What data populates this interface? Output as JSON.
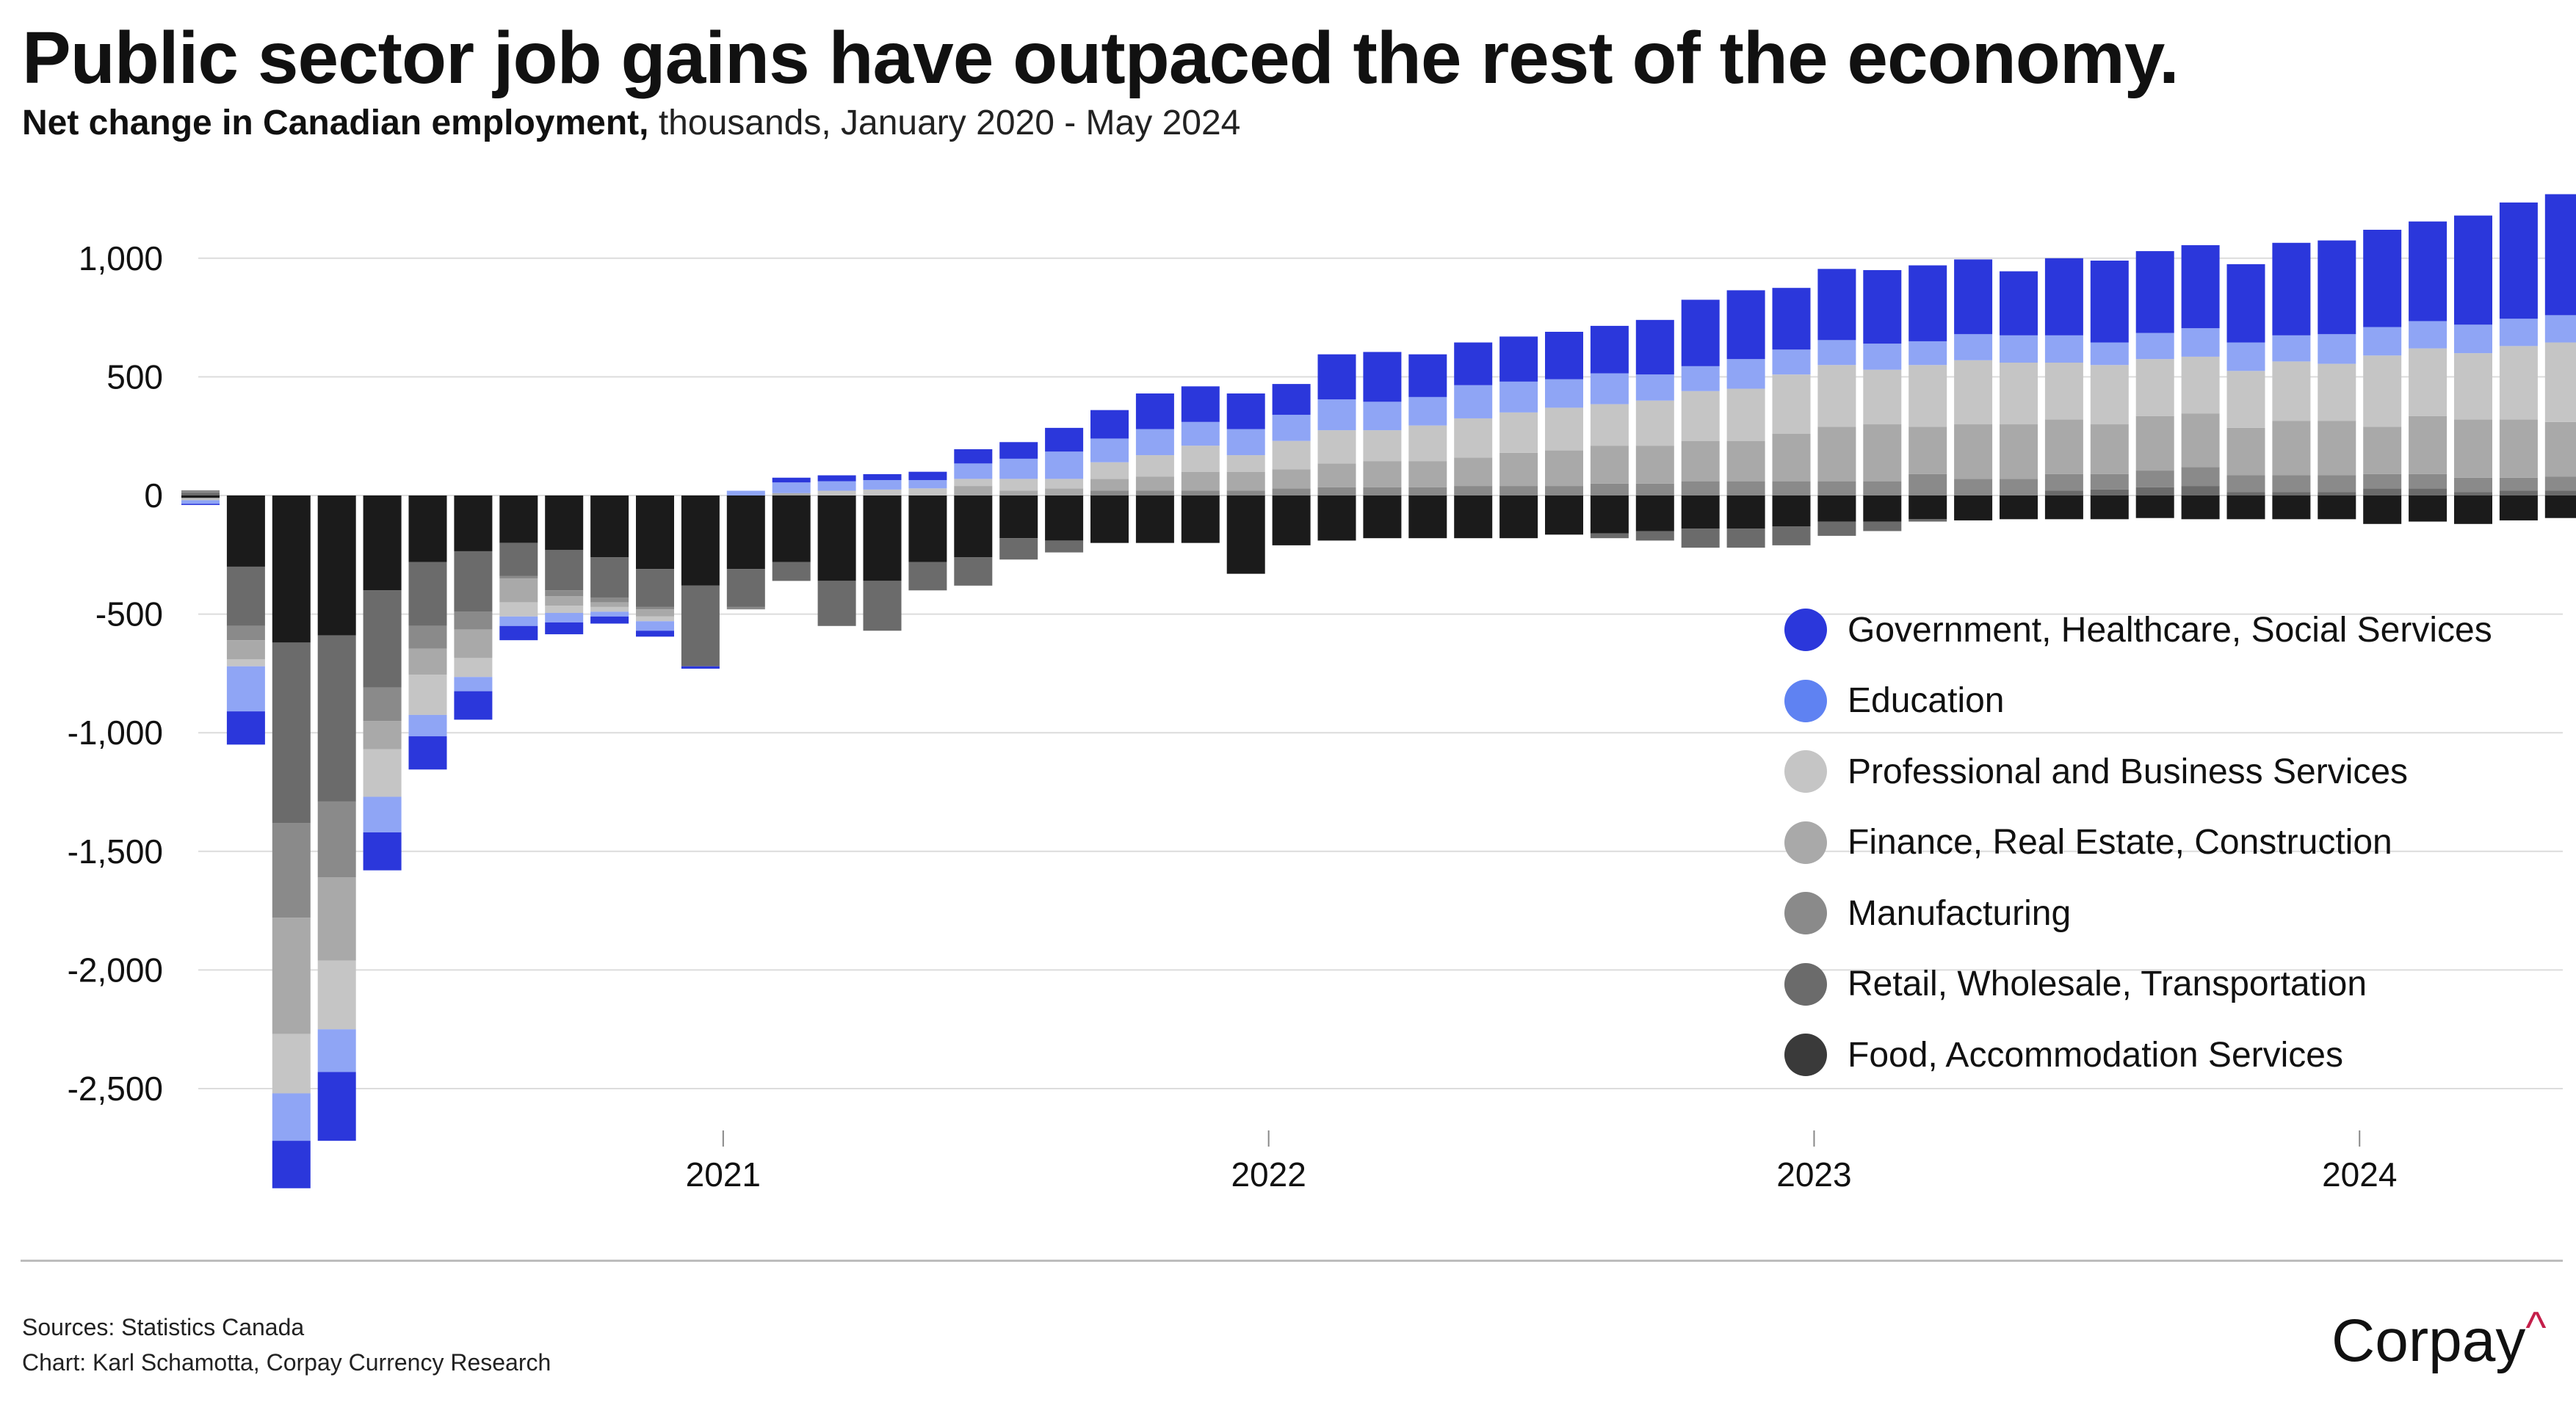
{
  "header": {
    "title": "Public sector job gains have outpaced the rest of the economy.",
    "subtitle_bold": "Net change in Canadian employment,",
    "subtitle_rest": " thousands, January 2020 - May 2024"
  },
  "footer": {
    "source": "Sources: Statistics Canada",
    "credit": "Chart: Karl Schamotta, Corpay Currency Research",
    "logo_text": "Corpay",
    "logo_mark": "^",
    "logo_mark_color": "#c41f4a"
  },
  "chart_data": {
    "type": "bar",
    "stacked": true,
    "title": "Public sector job gains have outpaced the rest of the economy.",
    "subtitle": "Net change in Canadian employment, thousands, January 2020 - May 2024",
    "xlabel": "",
    "ylabel": "",
    "ylim": [
      -2700,
      1350
    ],
    "yticks": [
      1000,
      500,
      0,
      -500,
      -1000,
      -1500,
      -2000,
      -2500
    ],
    "ytick_labels": [
      "1,000",
      "500",
      "0",
      "-500",
      "-1,000",
      "-1,500",
      "-2,000",
      "-2,500"
    ],
    "xtick_labels": [
      {
        "label": "2021",
        "index": 12
      },
      {
        "label": "2022",
        "index": 24
      },
      {
        "label": "2023",
        "index": 36
      },
      {
        "label": "2024",
        "index": 48
      }
    ],
    "grid": true,
    "legend_position": "right",
    "categories": [
      "2020-01",
      "2020-02",
      "2020-03",
      "2020-04",
      "2020-05",
      "2020-06",
      "2020-07",
      "2020-08",
      "2020-09",
      "2020-10",
      "2020-11",
      "2020-12",
      "2021-01",
      "2021-02",
      "2021-03",
      "2021-04",
      "2021-05",
      "2021-06",
      "2021-07",
      "2021-08",
      "2021-09",
      "2021-10",
      "2021-11",
      "2021-12",
      "2022-01",
      "2022-02",
      "2022-03",
      "2022-04",
      "2022-05",
      "2022-06",
      "2022-07",
      "2022-08",
      "2022-09",
      "2022-10",
      "2022-11",
      "2022-12",
      "2023-01",
      "2023-02",
      "2023-03",
      "2023-04",
      "2023-05",
      "2023-06",
      "2023-07",
      "2023-08",
      "2023-09",
      "2023-10",
      "2023-11",
      "2023-12",
      "2024-01",
      "2024-02",
      "2024-03",
      "2024-04",
      "2024-05"
    ],
    "series": [
      {
        "name": "Food, Accommodation Services",
        "color": "#1b1b1b",
        "values": [
          -10,
          -300,
          -620,
          -590,
          -400,
          -280,
          -235,
          -200,
          -230,
          -260,
          -310,
          -380,
          -310,
          -280,
          -360,
          -360,
          -280,
          -260,
          -180,
          -190,
          -200,
          -200,
          -200,
          -330,
          -210,
          -190,
          -180,
          -180,
          -180,
          -180,
          -165,
          -160,
          -150,
          -140,
          -140,
          -130,
          -110,
          -110,
          -100,
          -105,
          -100,
          -100,
          -100,
          -95,
          -100,
          -100,
          -100,
          -100,
          -120,
          -110,
          -120,
          -105,
          -95
        ]
      },
      {
        "name": "Retail, Wholesale, Transportation",
        "color": "#6b6b6b",
        "values": [
          12,
          -250,
          -760,
          -700,
          -410,
          -270,
          -255,
          -140,
          -170,
          -170,
          -160,
          -340,
          -160,
          -80,
          -190,
          -210,
          -120,
          -120,
          -90,
          -50,
          0,
          0,
          0,
          0,
          0,
          0,
          0,
          0,
          0,
          0,
          0,
          -20,
          -40,
          -80,
          -80,
          -80,
          -60,
          -40,
          -10,
          0,
          0,
          20,
          25,
          35,
          40,
          15,
          15,
          15,
          30,
          30,
          15,
          20,
          20
        ]
      },
      {
        "name": "Manufacturing",
        "color": "#8a8a8a",
        "values": [
          10,
          -60,
          -400,
          -320,
          -140,
          -95,
          -75,
          -10,
          -25,
          -20,
          -10,
          0,
          -10,
          0,
          0,
          0,
          0,
          0,
          0,
          0,
          20,
          20,
          20,
          20,
          30,
          35,
          35,
          35,
          40,
          40,
          40,
          50,
          50,
          60,
          60,
          60,
          60,
          60,
          90,
          70,
          70,
          70,
          65,
          70,
          80,
          70,
          70,
          70,
          60,
          60,
          60,
          55,
          60
        ]
      },
      {
        "name": "Finance, Real Estate, Construction",
        "color": "#a9a9a9",
        "values": [
          -5,
          -80,
          -490,
          -350,
          -120,
          -110,
          -120,
          -100,
          -40,
          -20,
          -30,
          0,
          0,
          10,
          0,
          0,
          0,
          40,
          20,
          30,
          50,
          60,
          80,
          80,
          80,
          100,
          110,
          110,
          120,
          140,
          150,
          160,
          160,
          170,
          170,
          200,
          230,
          240,
          200,
          230,
          230,
          230,
          210,
          230,
          225,
          200,
          230,
          230,
          200,
          245,
          245,
          245,
          230
        ]
      },
      {
        "name": "Professional and Business Services",
        "color": "#c5c5c5",
        "values": [
          -5,
          -30,
          -250,
          -290,
          -200,
          -170,
          -80,
          -60,
          -30,
          -20,
          -20,
          0,
          0,
          0,
          20,
          25,
          30,
          30,
          50,
          40,
          70,
          90,
          110,
          70,
          120,
          140,
          130,
          150,
          165,
          170,
          180,
          175,
          190,
          210,
          220,
          250,
          260,
          230,
          260,
          270,
          260,
          240,
          250,
          240,
          240,
          240,
          250,
          240,
          300,
          285,
          280,
          310,
          335
        ]
      },
      {
        "name": "Education",
        "color": "#8fa5f5",
        "values": [
          -15,
          -190,
          -200,
          -180,
          -150,
          -90,
          -60,
          -40,
          -40,
          -20,
          -40,
          0,
          20,
          45,
          40,
          40,
          35,
          65,
          85,
          115,
          100,
          110,
          100,
          110,
          110,
          130,
          120,
          120,
          140,
          130,
          120,
          130,
          110,
          105,
          125,
          105,
          105,
          110,
          100,
          110,
          115,
          115,
          95,
          110,
          120,
          120,
          110,
          125,
          120,
          115,
          120,
          115,
          115
        ]
      },
      {
        "name": "Government, Healthcare, Social Services",
        "color": "#2b37db",
        "values": [
          -5,
          -140,
          -200,
          -290,
          -160,
          -140,
          -120,
          -60,
          -50,
          -30,
          -25,
          -10,
          0,
          20,
          25,
          25,
          35,
          60,
          70,
          100,
          120,
          150,
          150,
          150,
          130,
          190,
          210,
          180,
          180,
          190,
          200,
          200,
          230,
          280,
          290,
          260,
          300,
          310,
          320,
          315,
          270,
          325,
          345,
          345,
          350,
          330,
          390,
          395,
          410,
          420,
          460,
          490,
          510
        ]
      }
    ]
  }
}
